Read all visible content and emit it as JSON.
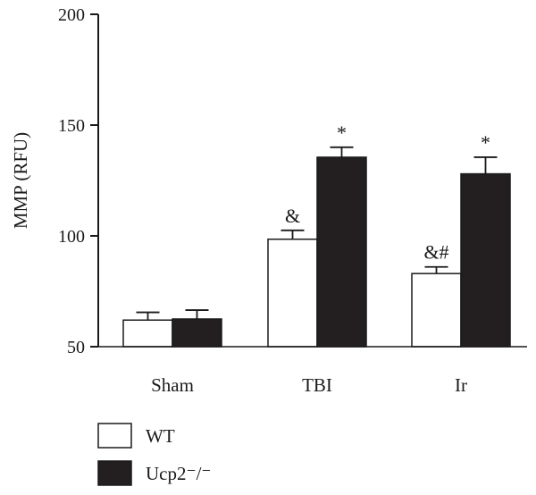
{
  "chart_data": {
    "type": "bar",
    "ylabel": "MMP (RFU)",
    "ylim": [
      50,
      200
    ],
    "yticks": [
      "50",
      "100",
      "150",
      "200"
    ],
    "categories": [
      "Sham",
      "TBI",
      "Ir"
    ],
    "series": [
      {
        "name": "WT",
        "color": "#ffffff",
        "values": [
          62,
          98.5,
          83
        ],
        "errors": [
          3.5,
          4,
          3
        ],
        "annotations": [
          "",
          "&",
          "&#"
        ]
      },
      {
        "name": "Ucp2⁻/⁻",
        "color": "#231f20",
        "values": [
          62.5,
          135.5,
          128
        ],
        "errors": [
          4,
          4.5,
          7.5
        ],
        "annotations": [
          "",
          "*",
          "*"
        ]
      }
    ],
    "legend_position": "bottom-left",
    "grid": false
  }
}
